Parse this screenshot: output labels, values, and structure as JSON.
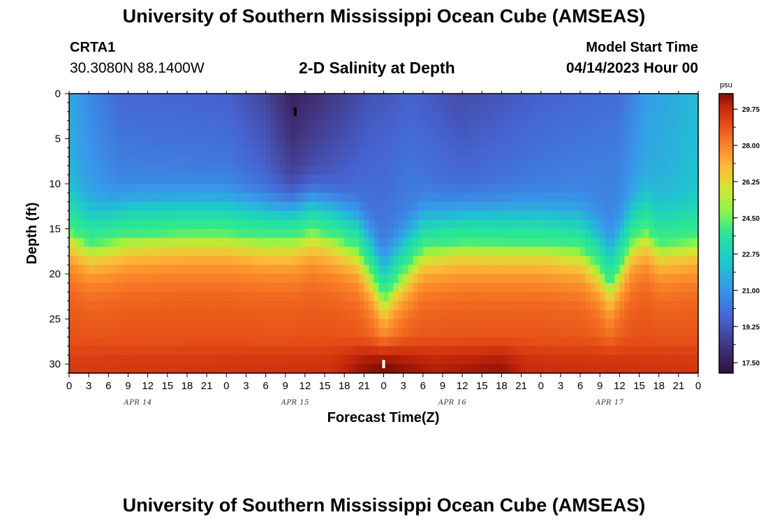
{
  "header": {
    "title": "University of Southern Mississippi Ocean Cube (AMSEAS)",
    "station_id": "CRTA1",
    "coordinates": "30.3080N  88.1400W",
    "plot_title": "2-D Salinity at Depth",
    "model_start_label": "Model Start Time",
    "model_start_value": "04/14/2023 Hour 00"
  },
  "footer": {
    "title": "University of Southern Mississippi Ocean Cube (AMSEAS)"
  },
  "chart_data": {
    "type": "heatmap",
    "title": "2-D Salinity at Depth",
    "xlabel": "Forecast Time(Z)",
    "ylabel": "Depth (ft)",
    "x_range_hours": [
      0,
      96
    ],
    "y_range_ft": [
      0,
      31
    ],
    "y_reversed": true,
    "x_tick_labels": [
      "0",
      "3",
      "6",
      "9",
      "12",
      "15",
      "18",
      "21",
      "0",
      "3",
      "6",
      "9",
      "12",
      "15",
      "18",
      "21",
      "0",
      "3",
      "6",
      "9",
      "12",
      "15",
      "18",
      "21",
      "0",
      "3",
      "6",
      "9",
      "12",
      "15",
      "18",
      "21",
      "0"
    ],
    "x_date_labels": [
      {
        "label": "APR 14",
        "hour": 10.5
      },
      {
        "label": "APR 15",
        "hour": 34.5
      },
      {
        "label": "APR 16",
        "hour": 58.5
      },
      {
        "label": "APR 17",
        "hour": 82.5
      }
    ],
    "y_tick_labels": [
      "0",
      "5",
      "10",
      "15",
      "20",
      "25",
      "30"
    ],
    "y_ticks_ft": [
      0,
      5,
      10,
      15,
      20,
      25,
      30
    ],
    "colorbar": {
      "unit": "psu",
      "min": 17.0,
      "max": 30.5,
      "tick_labels": [
        "29.75",
        "28.00",
        "26.25",
        "24.50",
        "22.75",
        "21.00",
        "19.25",
        "17.50"
      ],
      "tick_values": [
        29.75,
        28.0,
        26.25,
        24.5,
        22.75,
        21.0,
        19.25,
        17.5
      ]
    },
    "markers": [
      {
        "name": "min-salinity-marker",
        "hour": 34.5,
        "depth_ft": 2.0,
        "color": "#000000"
      },
      {
        "name": "max-salinity-marker",
        "hour": 48,
        "depth_ft": 30.0,
        "color": "#ffffff"
      }
    ],
    "halocline_depth_ft": [
      {
        "hour": 0,
        "depth": 15
      },
      {
        "hour": 3,
        "depth": 16.5
      },
      {
        "hour": 6,
        "depth": 16.2
      },
      {
        "hour": 9,
        "depth": 15.6
      },
      {
        "hour": 18,
        "depth": 15.3
      },
      {
        "hour": 24,
        "depth": 15.3
      },
      {
        "hour": 30,
        "depth": 15.8
      },
      {
        "hour": 34,
        "depth": 15.8
      },
      {
        "hour": 37,
        "depth": 15.0
      },
      {
        "hour": 40,
        "depth": 15.6
      },
      {
        "hour": 44,
        "depth": 17.0
      },
      {
        "hour": 46,
        "depth": 19.5
      },
      {
        "hour": 48,
        "depth": 22.5
      },
      {
        "hour": 50,
        "depth": 20.5
      },
      {
        "hour": 54,
        "depth": 17.0
      },
      {
        "hour": 60,
        "depth": 16.4
      },
      {
        "hour": 72,
        "depth": 16.5
      },
      {
        "hour": 78,
        "depth": 17.0
      },
      {
        "hour": 81,
        "depth": 19.0
      },
      {
        "hour": 82.5,
        "depth": 21.0
      },
      {
        "hour": 84,
        "depth": 19.0
      },
      {
        "hour": 86,
        "depth": 16.0
      },
      {
        "hour": 88,
        "depth": 15.0
      },
      {
        "hour": 90,
        "depth": 16.5
      },
      {
        "hour": 96,
        "depth": 16.0
      }
    ],
    "surface_salinity_psu": [
      {
        "hour": 0,
        "value": 21.5
      },
      {
        "hour": 4,
        "value": 20.5
      },
      {
        "hour": 8,
        "value": 19.8
      },
      {
        "hour": 24,
        "value": 19.6
      },
      {
        "hour": 30,
        "value": 18.8
      },
      {
        "hour": 34,
        "value": 17.6
      },
      {
        "hour": 40,
        "value": 18.4
      },
      {
        "hour": 46,
        "value": 19.2
      },
      {
        "hour": 52,
        "value": 19.6
      },
      {
        "hour": 60,
        "value": 19.0
      },
      {
        "hour": 72,
        "value": 19.6
      },
      {
        "hour": 84,
        "value": 20.0
      },
      {
        "hour": 88,
        "value": 21.2
      },
      {
        "hour": 96,
        "value": 22.0
      }
    ],
    "bottom_salinity_psu": [
      {
        "hour": 0,
        "value": 29.4
      },
      {
        "hour": 40,
        "value": 29.6
      },
      {
        "hour": 44,
        "value": 30.2
      },
      {
        "hour": 48,
        "value": 30.5
      },
      {
        "hour": 56,
        "value": 30.0
      },
      {
        "hour": 66,
        "value": 30.3
      },
      {
        "hour": 70,
        "value": 29.7
      },
      {
        "hour": 96,
        "value": 29.5
      }
    ]
  }
}
